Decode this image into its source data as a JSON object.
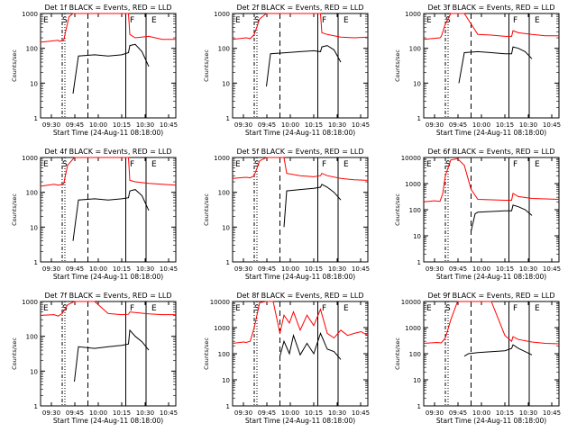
{
  "chart_data": [
    {
      "type": "line",
      "title": "Det 1f BLACK = Events, RED = LLD",
      "xlabel": "Start Time (24-Aug-11 08:18:00)",
      "ylabel": "Counts/sec",
      "y_scale": "log",
      "ylim": [
        1,
        1000
      ],
      "y_ticks": [
        "1",
        "10",
        "100",
        "1000"
      ],
      "x_ticks": [
        "09:30",
        "09:45",
        "10:00",
        "10:15",
        "10:30",
        "10:45"
      ],
      "markers": [
        "E",
        "S",
        "F",
        "E"
      ],
      "series": [
        {
          "color": "#ff0000",
          "x": [
            0,
            0.13,
            0.14,
            0.17,
            0.21,
            0.24,
            0.25,
            0.3,
            0.4,
            0.5,
            0.6,
            0.65,
            0.66,
            0.7,
            0.8,
            0.9,
            1.0
          ],
          "values": [
            150,
            170,
            160,
            165,
            800,
            1000,
            1000,
            1000,
            1000,
            1000,
            1000,
            1000,
            250,
            200,
            220,
            180,
            180
          ]
        },
        {
          "color": "#000000",
          "x": [
            0.24,
            0.28,
            0.4,
            0.5,
            0.6,
            0.65,
            0.66,
            0.7,
            0.75,
            0.8
          ],
          "values": [
            5,
            60,
            65,
            60,
            65,
            75,
            120,
            130,
            80,
            30
          ]
        }
      ]
    },
    {
      "type": "line",
      "title": "Det 2f BLACK = Events, RED = LLD",
      "xlabel": "Start Time (24-Aug-11 08:18:00)",
      "ylabel": "Counts/sec",
      "y_scale": "log",
      "ylim": [
        1,
        1000
      ],
      "y_ticks": [
        "1",
        "10",
        "100",
        "1000"
      ],
      "x_ticks": [
        "09:30",
        "09:45",
        "10:00",
        "10:15",
        "10:30",
        "10:45"
      ],
      "markers": [
        "E",
        "S",
        "F",
        "E"
      ],
      "series": [
        {
          "color": "#ff0000",
          "x": [
            0,
            0.1,
            0.13,
            0.16,
            0.2,
            0.25,
            0.3,
            0.4,
            0.5,
            0.6,
            0.65,
            0.66,
            0.7,
            0.8,
            0.9,
            1.0
          ],
          "values": [
            180,
            200,
            190,
            250,
            700,
            1000,
            1000,
            1000,
            1000,
            1000,
            1000,
            280,
            250,
            210,
            200,
            210
          ]
        },
        {
          "color": "#000000",
          "x": [
            0.25,
            0.28,
            0.4,
            0.5,
            0.6,
            0.65,
            0.66,
            0.7,
            0.75,
            0.8
          ],
          "values": [
            8,
            70,
            75,
            80,
            85,
            80,
            110,
            120,
            90,
            40
          ]
        }
      ]
    },
    {
      "type": "line",
      "title": "Det 3f BLACK = Events, RED = LLD",
      "xlabel": "Start Time (24-Aug-11 08:18:00)",
      "ylabel": "Counts/sec",
      "y_scale": "log",
      "ylim": [
        1,
        1000
      ],
      "y_ticks": [
        "1",
        "10",
        "100",
        "1000"
      ],
      "x_ticks": [
        "09:30",
        "09:45",
        "10:00",
        "10:15",
        "10:30",
        "10:45"
      ],
      "markers": [
        "E",
        "S",
        "F",
        "E"
      ],
      "series": [
        {
          "color": "#ff0000",
          "x": [
            0,
            0.12,
            0.13,
            0.16,
            0.2,
            0.25,
            0.3,
            0.4,
            0.5,
            0.6,
            0.65,
            0.66,
            0.7,
            0.8,
            0.9,
            1.0
          ],
          "values": [
            180,
            200,
            220,
            500,
            1000,
            1000,
            1000,
            250,
            240,
            220,
            220,
            320,
            280,
            250,
            230,
            230
          ]
        },
        {
          "color": "#000000",
          "x": [
            0.26,
            0.3,
            0.4,
            0.5,
            0.6,
            0.65,
            0.66,
            0.7,
            0.75,
            0.8
          ],
          "values": [
            10,
            75,
            80,
            75,
            70,
            70,
            110,
            100,
            80,
            50
          ]
        }
      ]
    },
    {
      "type": "line",
      "title": "Det 4f BLACK = Events, RED = LLD",
      "xlabel": "Start Time (24-Aug-11 08:18:00)",
      "ylabel": "Counts/sec",
      "y_scale": "log",
      "ylim": [
        1,
        1000
      ],
      "y_ticks": [
        "1",
        "10",
        "100",
        "1000"
      ],
      "x_ticks": [
        "09:30",
        "09:45",
        "10:00",
        "10:15",
        "10:30",
        "10:45"
      ],
      "markers": [
        "E",
        "S",
        "F",
        "E"
      ],
      "series": [
        {
          "color": "#ff0000",
          "x": [
            0,
            0.1,
            0.13,
            0.17,
            0.2,
            0.25,
            0.3,
            0.4,
            0.5,
            0.6,
            0.65,
            0.66,
            0.7,
            0.8,
            0.9,
            1.0
          ],
          "values": [
            150,
            170,
            160,
            170,
            600,
            1000,
            1000,
            1000,
            1000,
            1000,
            1000,
            220,
            200,
            180,
            170,
            160
          ]
        },
        {
          "color": "#000000",
          "x": [
            0.24,
            0.28,
            0.4,
            0.5,
            0.6,
            0.65,
            0.66,
            0.7,
            0.75,
            0.8
          ],
          "values": [
            4,
            60,
            65,
            60,
            65,
            70,
            110,
            120,
            80,
            30
          ]
        }
      ]
    },
    {
      "type": "line",
      "title": "Det 5f BLACK = Events, RED = LLD",
      "xlabel": "Start Time (24-Aug-11 08:18:00)",
      "ylabel": "Counts/sec",
      "y_scale": "log",
      "ylim": [
        1,
        1000
      ],
      "y_ticks": [
        "1",
        "10",
        "100",
        "1000"
      ],
      "x_ticks": [
        "09:30",
        "09:45",
        "10:00",
        "10:15",
        "10:30",
        "10:45"
      ],
      "markers": [
        "E",
        "S",
        "F",
        "E"
      ],
      "series": [
        {
          "color": "#ff0000",
          "x": [
            0,
            0.1,
            0.13,
            0.16,
            0.2,
            0.25,
            0.3,
            0.38,
            0.4,
            0.5,
            0.6,
            0.65,
            0.66,
            0.7,
            0.8,
            0.9,
            1.0
          ],
          "values": [
            250,
            270,
            260,
            300,
            800,
            1000,
            1000,
            1000,
            350,
            300,
            280,
            300,
            350,
            300,
            250,
            230,
            220
          ]
        },
        {
          "color": "#000000",
          "x": [
            0.38,
            0.4,
            0.5,
            0.6,
            0.65,
            0.66,
            0.7,
            0.75,
            0.8
          ],
          "values": [
            10,
            110,
            120,
            130,
            140,
            170,
            140,
            100,
            60
          ]
        }
      ]
    },
    {
      "type": "line",
      "title": "Det 6f BLACK = Events, RED = LLD",
      "xlabel": "Start Time (24-Aug-11 08:18:00)",
      "ylabel": "Counts/sec",
      "y_scale": "log",
      "ylim": [
        1,
        10000
      ],
      "y_ticks": [
        "1",
        "10",
        "100",
        "1000",
        "10000"
      ],
      "x_ticks": [
        "09:30",
        "09:45",
        "10:00",
        "10:15",
        "10:30",
        "10:45"
      ],
      "markers": [
        "E",
        "S",
        "F",
        "E"
      ],
      "series": [
        {
          "color": "#ff0000",
          "x": [
            0,
            0.08,
            0.12,
            0.14,
            0.16,
            0.2,
            0.25,
            0.3,
            0.35,
            0.4,
            0.5,
            0.6,
            0.65,
            0.66,
            0.7,
            0.8,
            0.9,
            1.0
          ],
          "values": [
            200,
            220,
            210,
            400,
            2000,
            8000,
            9000,
            5000,
            600,
            250,
            240,
            230,
            230,
            420,
            320,
            270,
            260,
            250
          ]
        },
        {
          "color": "#000000",
          "x": [
            0.35,
            0.38,
            0.4,
            0.5,
            0.6,
            0.65,
            0.66,
            0.7,
            0.75,
            0.8
          ],
          "values": [
            15,
            70,
            80,
            85,
            90,
            90,
            150,
            130,
            100,
            60
          ]
        }
      ]
    },
    {
      "type": "line",
      "title": "Det 7f BLACK = Events, RED = LLD",
      "xlabel": "Start Time (24-Aug-11 08:18:00)",
      "ylabel": "Counts/sec",
      "y_scale": "log",
      "ylim": [
        1,
        1000
      ],
      "y_ticks": [
        "1",
        "10",
        "100",
        "1000"
      ],
      "x_ticks": [
        "09:30",
        "09:45",
        "10:00",
        "10:15",
        "10:30",
        "10:45"
      ],
      "markers": [
        "E",
        "S",
        "F",
        "E"
      ],
      "series": [
        {
          "color": "#ff0000",
          "x": [
            0,
            0.1,
            0.13,
            0.16,
            0.2,
            0.25,
            0.3,
            0.4,
            0.5,
            0.6,
            0.65,
            0.66,
            0.7,
            0.8,
            0.9,
            1.0
          ],
          "values": [
            400,
            420,
            380,
            450,
            800,
            1000,
            1000,
            1000,
            450,
            420,
            430,
            500,
            480,
            440,
            420,
            420
          ]
        },
        {
          "color": "#000000",
          "x": [
            0.25,
            0.28,
            0.4,
            0.5,
            0.6,
            0.65,
            0.66,
            0.7,
            0.75,
            0.8
          ],
          "values": [
            5,
            50,
            45,
            50,
            55,
            60,
            150,
            100,
            70,
            40
          ]
        }
      ]
    },
    {
      "type": "line",
      "title": "Det 8f BLACK = Events, RED = LLD",
      "xlabel": "Start Time (24-Aug-11 08:18:00)",
      "ylabel": "Counts/sec",
      "y_scale": "log",
      "ylim": [
        1,
        10000
      ],
      "y_ticks": [
        "1",
        "10",
        "100",
        "1000",
        "10000"
      ],
      "x_ticks": [
        "09:30",
        "09:45",
        "10:00",
        "10:15",
        "10:30",
        "10:45"
      ],
      "markers": [
        "E",
        "S",
        "F",
        "E"
      ],
      "series": [
        {
          "color": "#ff0000",
          "x": [
            0,
            0.08,
            0.1,
            0.13,
            0.16,
            0.2,
            0.25,
            0.3,
            0.35,
            0.38,
            0.42,
            0.45,
            0.5,
            0.55,
            0.6,
            0.65,
            0.7,
            0.75,
            0.8,
            0.85,
            0.9,
            0.95,
            1.0
          ],
          "values": [
            250,
            280,
            270,
            300,
            1000,
            9000,
            10000,
            10000,
            600,
            3000,
            1500,
            4000,
            800,
            3000,
            1200,
            5000,
            600,
            400,
            800,
            500,
            600,
            700,
            500
          ]
        },
        {
          "color": "#000000",
          "x": [
            0.35,
            0.38,
            0.42,
            0.45,
            0.5,
            0.55,
            0.6,
            0.65,
            0.7,
            0.75,
            0.8
          ],
          "values": [
            80,
            300,
            100,
            500,
            90,
            250,
            100,
            600,
            150,
            120,
            60
          ]
        }
      ]
    },
    {
      "type": "line",
      "title": "Det 9f BLACK = Events, RED = LLD",
      "xlabel": "Start Time (24-Aug-11 08:18:00)",
      "ylabel": "Counts/sec",
      "y_scale": "log",
      "ylim": [
        1,
        10000
      ],
      "y_ticks": [
        "1",
        "10",
        "100",
        "1000",
        "10000"
      ],
      "x_ticks": [
        "09:30",
        "09:45",
        "10:00",
        "10:15",
        "10:30",
        "10:45"
      ],
      "markers": [
        "E",
        "S",
        "F",
        "E"
      ],
      "series": [
        {
          "color": "#ff0000",
          "x": [
            0,
            0.1,
            0.13,
            0.16,
            0.2,
            0.25,
            0.3,
            0.4,
            0.5,
            0.6,
            0.65,
            0.66,
            0.7,
            0.8,
            0.9,
            1.0
          ],
          "values": [
            250,
            270,
            260,
            400,
            2000,
            10000,
            10000,
            10000,
            10000,
            500,
            300,
            450,
            350,
            280,
            250,
            240
          ]
        },
        {
          "color": "#000000",
          "x": [
            0.3,
            0.33,
            0.4,
            0.5,
            0.6,
            0.65,
            0.66,
            0.7,
            0.75,
            0.8
          ],
          "values": [
            80,
            100,
            110,
            120,
            130,
            160,
            220,
            160,
            120,
            90
          ]
        }
      ]
    }
  ]
}
